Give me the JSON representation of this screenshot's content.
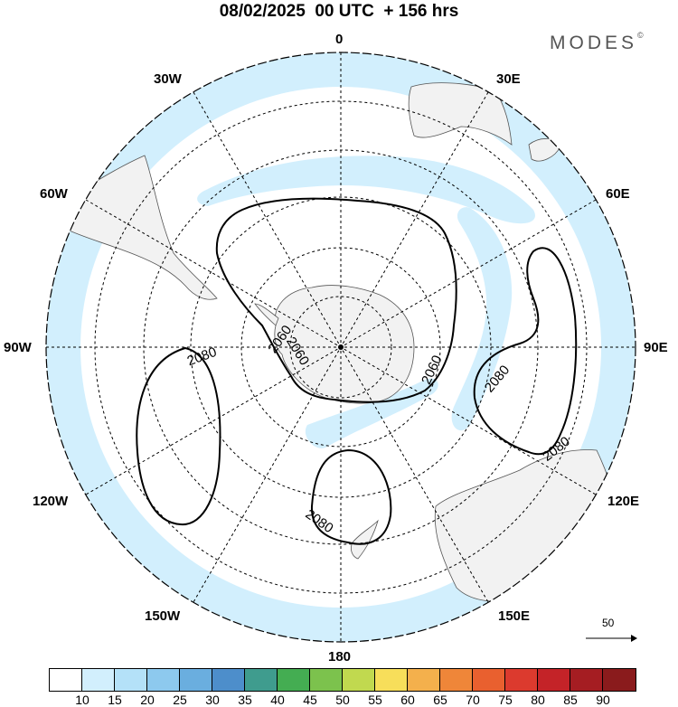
{
  "title": "08/02/2025  00 UTC  + 156 hrs",
  "brand": "MODES",
  "brand_mark": "©",
  "longitude_labels": [
    "0",
    "30E",
    "60E",
    "90E",
    "120E",
    "150E",
    "180",
    "150W",
    "120W",
    "90W",
    "60W",
    "30W"
  ],
  "contour_labels": [
    "2060",
    "2060",
    "2060",
    "2080",
    "2080",
    "2080",
    "2080"
  ],
  "vector_reference": "50",
  "colorbar": {
    "levels": [
      "10",
      "15",
      "20",
      "25",
      "30",
      "35",
      "40",
      "45",
      "50",
      "55",
      "60",
      "65",
      "70",
      "75",
      "80",
      "85",
      "90"
    ],
    "colors": [
      "#ffffff",
      "#d2effd",
      "#b4e1f8",
      "#8dc9ee",
      "#6aaedf",
      "#4d8ecb",
      "#3f9c8e",
      "#44ad52",
      "#7cc24d",
      "#c1d94f",
      "#f7de5a",
      "#f4b04c",
      "#ef8639",
      "#e9602f",
      "#dc3a2e",
      "#c42328",
      "#a51d22",
      "#8a1b1c"
    ]
  },
  "colors": {
    "land": "#f2f2f2",
    "wind_shading": "#d2effd",
    "contour": "#000000",
    "graticule": "#000000"
  },
  "icons": [
    "vector-arrow-icon",
    "pole-marker-icon"
  ]
}
